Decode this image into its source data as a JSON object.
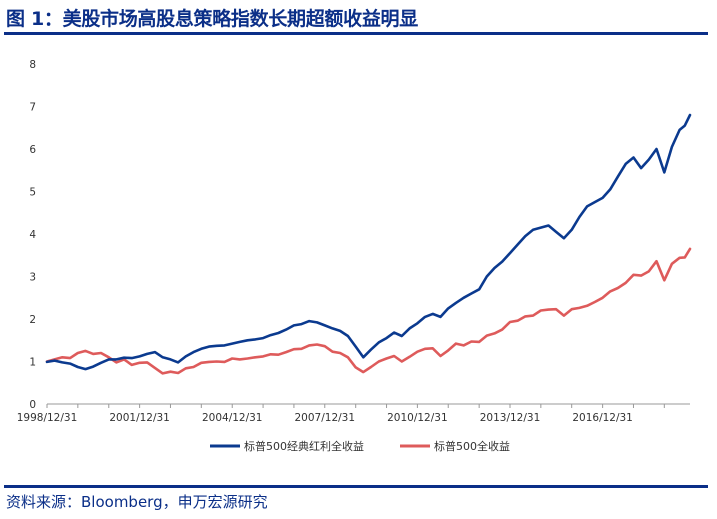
{
  "header": {
    "figure_title": "图 1：美股市场高股息策略指数长期超额收益明显"
  },
  "footer": {
    "source": "资料来源：Bloomberg，申万宏源研究"
  },
  "colors": {
    "accent": "#0b2f88",
    "series_dividend": "#0b3a8f",
    "series_sp500": "#de5b5b"
  },
  "chart_data": {
    "type": "line",
    "title": "",
    "xlabel": "",
    "ylabel": "",
    "x_tick_labels": [
      "1998/12/31",
      "2001/12/31",
      "2004/12/31",
      "2007/12/31",
      "2010/12/31",
      "2013/12/31",
      "2016/12/31"
    ],
    "x_range": [
      "1998-12-31",
      "2019-10-31"
    ],
    "ylim": [
      0,
      8
    ],
    "y_ticks": [
      0,
      1,
      2,
      3,
      4,
      5,
      6,
      7,
      8
    ],
    "grid": false,
    "legend_position": "bottom",
    "series": [
      {
        "name": "标普500经典红利全收益",
        "color": "#0b3a8f",
        "points": [
          [
            "1998-12-31",
            0.99
          ],
          [
            "1999-03-31",
            1.02
          ],
          [
            "1999-06-30",
            0.98
          ],
          [
            "1999-09-30",
            0.95
          ],
          [
            "1999-12-31",
            0.87
          ],
          [
            "2000-03-31",
            0.82
          ],
          [
            "2000-06-30",
            0.88
          ],
          [
            "2000-09-30",
            0.97
          ],
          [
            "2000-12-31",
            1.05
          ],
          [
            "2001-03-31",
            1.05
          ],
          [
            "2001-06-30",
            1.09
          ],
          [
            "2001-09-30",
            1.08
          ],
          [
            "2001-12-31",
            1.12
          ],
          [
            "2002-03-31",
            1.18
          ],
          [
            "2002-06-30",
            1.22
          ],
          [
            "2002-09-30",
            1.1
          ],
          [
            "2002-12-31",
            1.05
          ],
          [
            "2003-03-31",
            0.98
          ],
          [
            "2003-06-30",
            1.12
          ],
          [
            "2003-09-30",
            1.22
          ],
          [
            "2003-12-31",
            1.3
          ],
          [
            "2004-03-31",
            1.35
          ],
          [
            "2004-06-30",
            1.37
          ],
          [
            "2004-09-30",
            1.38
          ],
          [
            "2004-12-31",
            1.42
          ],
          [
            "2005-03-31",
            1.46
          ],
          [
            "2005-06-30",
            1.5
          ],
          [
            "2005-09-30",
            1.52
          ],
          [
            "2005-12-31",
            1.55
          ],
          [
            "2006-03-31",
            1.62
          ],
          [
            "2006-06-30",
            1.67
          ],
          [
            "2006-09-30",
            1.75
          ],
          [
            "2006-12-31",
            1.85
          ],
          [
            "2007-03-31",
            1.88
          ],
          [
            "2007-06-30",
            1.95
          ],
          [
            "2007-09-30",
            1.92
          ],
          [
            "2007-12-31",
            1.85
          ],
          [
            "2008-03-31",
            1.78
          ],
          [
            "2008-06-30",
            1.72
          ],
          [
            "2008-09-30",
            1.6
          ],
          [
            "2008-12-31",
            1.35
          ],
          [
            "2009-03-31",
            1.1
          ],
          [
            "2009-06-30",
            1.28
          ],
          [
            "2009-09-30",
            1.45
          ],
          [
            "2009-12-31",
            1.55
          ],
          [
            "2010-03-31",
            1.68
          ],
          [
            "2010-06-30",
            1.6
          ],
          [
            "2010-09-30",
            1.78
          ],
          [
            "2010-12-31",
            1.9
          ],
          [
            "2011-03-31",
            2.05
          ],
          [
            "2011-06-30",
            2.12
          ],
          [
            "2011-09-30",
            2.05
          ],
          [
            "2011-12-31",
            2.25
          ],
          [
            "2012-03-31",
            2.38
          ],
          [
            "2012-06-30",
            2.5
          ],
          [
            "2012-09-30",
            2.6
          ],
          [
            "2012-12-31",
            2.7
          ],
          [
            "2013-03-31",
            3.0
          ],
          [
            "2013-06-30",
            3.2
          ],
          [
            "2013-09-30",
            3.35
          ],
          [
            "2013-12-31",
            3.55
          ],
          [
            "2014-03-31",
            3.75
          ],
          [
            "2014-06-30",
            3.95
          ],
          [
            "2014-09-30",
            4.1
          ],
          [
            "2014-12-31",
            4.15
          ],
          [
            "2015-03-31",
            4.2
          ],
          [
            "2015-06-30",
            4.05
          ],
          [
            "2015-09-30",
            3.9
          ],
          [
            "2015-12-31",
            4.1
          ],
          [
            "2016-03-31",
            4.4
          ],
          [
            "2016-06-30",
            4.65
          ],
          [
            "2016-09-30",
            4.75
          ],
          [
            "2016-12-31",
            4.85
          ],
          [
            "2017-03-31",
            5.05
          ],
          [
            "2017-06-30",
            5.35
          ],
          [
            "2017-09-30",
            5.65
          ],
          [
            "2017-12-31",
            5.8
          ],
          [
            "2018-03-31",
            5.55
          ],
          [
            "2018-06-30",
            5.75
          ],
          [
            "2018-09-30",
            6.0
          ],
          [
            "2018-12-31",
            5.45
          ],
          [
            "2019-03-31",
            6.05
          ],
          [
            "2019-06-30",
            6.45
          ],
          [
            "2019-08-31",
            6.55
          ],
          [
            "2019-10-31",
            6.8
          ]
        ]
      },
      {
        "name": "标普500全收益",
        "color": "#de5b5b",
        "points": [
          [
            "1998-12-31",
            1.0
          ],
          [
            "1999-03-31",
            1.05
          ],
          [
            "1999-06-30",
            1.1
          ],
          [
            "1999-09-30",
            1.08
          ],
          [
            "1999-12-31",
            1.2
          ],
          [
            "2000-03-31",
            1.25
          ],
          [
            "2000-06-30",
            1.18
          ],
          [
            "2000-09-30",
            1.2
          ],
          [
            "2000-12-31",
            1.1
          ],
          [
            "2001-03-31",
            0.98
          ],
          [
            "2001-06-30",
            1.05
          ],
          [
            "2001-09-30",
            0.92
          ],
          [
            "2001-12-31",
            0.97
          ],
          [
            "2002-03-31",
            0.98
          ],
          [
            "2002-06-30",
            0.85
          ],
          [
            "2002-09-30",
            0.72
          ],
          [
            "2002-12-31",
            0.76
          ],
          [
            "2003-03-31",
            0.73
          ],
          [
            "2003-06-30",
            0.84
          ],
          [
            "2003-09-30",
            0.87
          ],
          [
            "2003-12-31",
            0.97
          ],
          [
            "2004-03-31",
            0.99
          ],
          [
            "2004-06-30",
            1.0
          ],
          [
            "2004-09-30",
            0.99
          ],
          [
            "2004-12-31",
            1.07
          ],
          [
            "2005-03-31",
            1.05
          ],
          [
            "2005-06-30",
            1.07
          ],
          [
            "2005-09-30",
            1.1
          ],
          [
            "2005-12-31",
            1.12
          ],
          [
            "2006-03-31",
            1.17
          ],
          [
            "2006-06-30",
            1.16
          ],
          [
            "2006-09-30",
            1.22
          ],
          [
            "2006-12-31",
            1.29
          ],
          [
            "2007-03-31",
            1.3
          ],
          [
            "2007-06-30",
            1.38
          ],
          [
            "2007-09-30",
            1.4
          ],
          [
            "2007-12-31",
            1.36
          ],
          [
            "2008-03-31",
            1.23
          ],
          [
            "2008-06-30",
            1.2
          ],
          [
            "2008-09-30",
            1.1
          ],
          [
            "2008-12-31",
            0.86
          ],
          [
            "2009-03-31",
            0.75
          ],
          [
            "2009-06-30",
            0.87
          ],
          [
            "2009-09-30",
            1.0
          ],
          [
            "2009-12-31",
            1.07
          ],
          [
            "2010-03-31",
            1.13
          ],
          [
            "2010-06-30",
            1.0
          ],
          [
            "2010-09-30",
            1.11
          ],
          [
            "2010-12-31",
            1.23
          ],
          [
            "2011-03-31",
            1.3
          ],
          [
            "2011-06-30",
            1.31
          ],
          [
            "2011-09-30",
            1.13
          ],
          [
            "2011-12-31",
            1.26
          ],
          [
            "2012-03-31",
            1.42
          ],
          [
            "2012-06-30",
            1.38
          ],
          [
            "2012-09-30",
            1.47
          ],
          [
            "2012-12-31",
            1.46
          ],
          [
            "2013-03-31",
            1.61
          ],
          [
            "2013-06-30",
            1.66
          ],
          [
            "2013-09-30",
            1.75
          ],
          [
            "2013-12-31",
            1.93
          ],
          [
            "2014-03-31",
            1.96
          ],
          [
            "2014-06-30",
            2.06
          ],
          [
            "2014-09-30",
            2.08
          ],
          [
            "2014-12-31",
            2.2
          ],
          [
            "2015-03-31",
            2.22
          ],
          [
            "2015-06-30",
            2.23
          ],
          [
            "2015-09-30",
            2.08
          ],
          [
            "2015-12-31",
            2.23
          ],
          [
            "2016-03-31",
            2.26
          ],
          [
            "2016-06-30",
            2.31
          ],
          [
            "2016-09-30",
            2.4
          ],
          [
            "2016-12-31",
            2.5
          ],
          [
            "2017-03-31",
            2.65
          ],
          [
            "2017-06-30",
            2.73
          ],
          [
            "2017-09-30",
            2.85
          ],
          [
            "2017-12-31",
            3.04
          ],
          [
            "2018-03-31",
            3.02
          ],
          [
            "2018-06-30",
            3.12
          ],
          [
            "2018-09-30",
            3.36
          ],
          [
            "2018-12-31",
            2.91
          ],
          [
            "2019-03-31",
            3.3
          ],
          [
            "2019-06-30",
            3.44
          ],
          [
            "2019-08-31",
            3.45
          ],
          [
            "2019-10-31",
            3.65
          ]
        ]
      }
    ]
  }
}
